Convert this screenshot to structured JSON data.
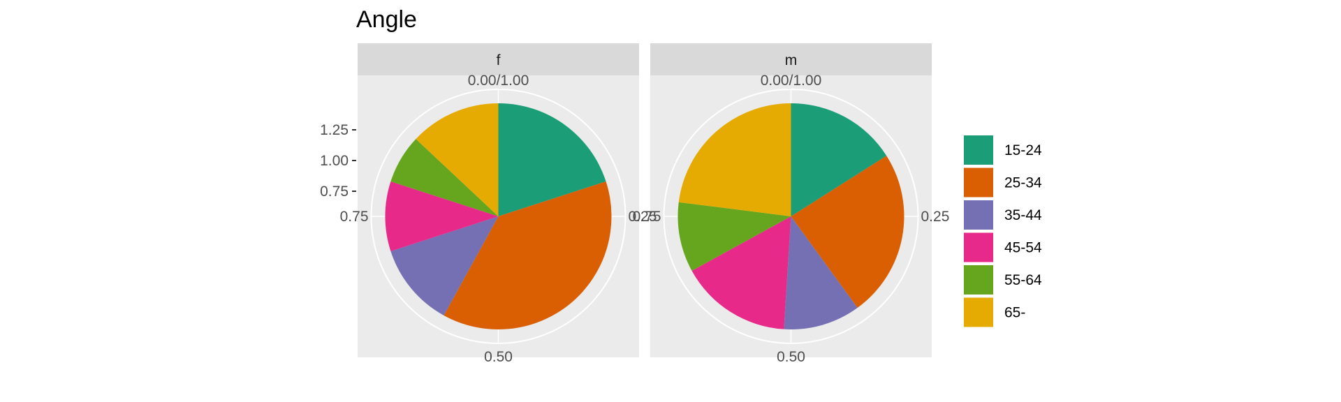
{
  "chart_data": {
    "type": "pie",
    "title": "Angle",
    "facets": [
      "f",
      "m"
    ],
    "categories": [
      "15-24",
      "25-34",
      "35-44",
      "45-54",
      "55-64",
      "65-"
    ],
    "colors": [
      "#1b9e77",
      "#d95f02",
      "#7570b3",
      "#e7298a",
      "#66a61e",
      "#e6ab02"
    ],
    "series": [
      {
        "facet": "f",
        "values": [
          0.2,
          0.38,
          0.12,
          0.1,
          0.07,
          0.13
        ]
      },
      {
        "facet": "m",
        "values": [
          0.16,
          0.24,
          0.11,
          0.16,
          0.1,
          0.23
        ]
      }
    ],
    "y_axis": {
      "ticks": [
        "0.75",
        "1.00",
        "1.25"
      ]
    },
    "angle_axis": {
      "ticks": [
        "0.00/1.00",
        "0.25",
        "0.50",
        "0.75"
      ]
    },
    "grid": true,
    "legend_position": "right"
  }
}
